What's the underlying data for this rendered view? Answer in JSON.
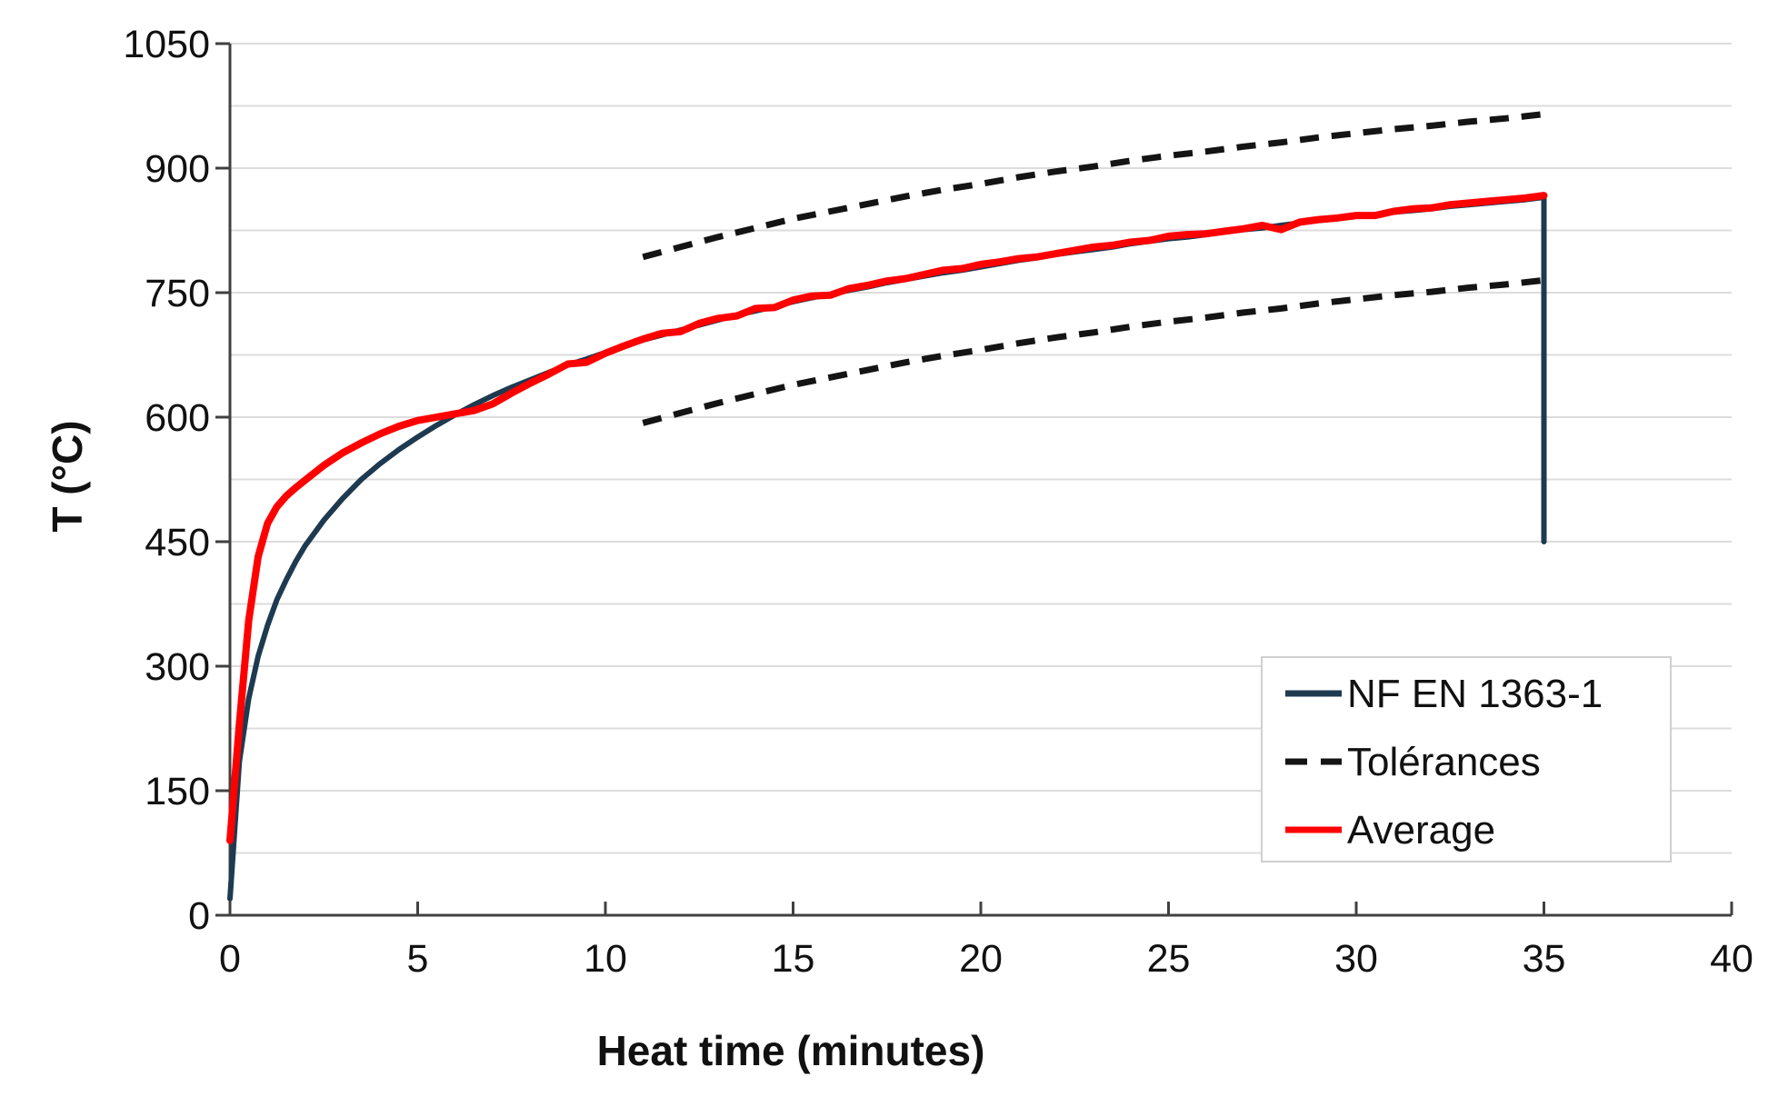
{
  "chart_data": {
    "type": "line",
    "title": "",
    "xlabel": "Heat time (minutes)",
    "ylabel": "T (°C)",
    "xlim": [
      0,
      40
    ],
    "ylim": [
      0,
      1050
    ],
    "x_ticks": [
      0,
      5,
      10,
      15,
      20,
      25,
      30,
      35,
      40
    ],
    "y_ticks": [
      0,
      150,
      300,
      450,
      600,
      750,
      900,
      1050
    ],
    "y_minor_grid_step": 75,
    "grid": "horizontal minor gridlines only",
    "legend_position": "inside-bottom-right",
    "colors": {
      "standard_curve": "#1e3a50",
      "tolerance": "#141414",
      "average": "#ff0000",
      "gridline": "#dcdcdc",
      "axis": "#404040",
      "legend_border": "#d0d0d0",
      "text": "#111111"
    },
    "legend": [
      {
        "label": "NF EN 1363-1",
        "color": "#1e3a50",
        "dash": false
      },
      {
        "label": "Tolérances",
        "color": "#141414",
        "dash": true
      },
      {
        "label": "Average",
        "color": "#ff0000",
        "dash": false
      }
    ],
    "series": [
      {
        "name": "NF EN 1363-1",
        "role": "standard-curve",
        "color": "#1e3a50",
        "style": "solid",
        "width": 6,
        "points": [
          [
            0,
            20
          ],
          [
            0.25,
            185
          ],
          [
            0.5,
            261
          ],
          [
            0.75,
            312
          ],
          [
            1,
            349
          ],
          [
            1.25,
            380
          ],
          [
            1.5,
            404
          ],
          [
            1.75,
            426
          ],
          [
            2,
            445
          ],
          [
            2.5,
            476
          ],
          [
            3,
            502
          ],
          [
            3.5,
            525
          ],
          [
            4,
            544
          ],
          [
            4.5,
            561
          ],
          [
            5,
            576
          ],
          [
            5.5,
            590
          ],
          [
            6,
            603
          ],
          [
            6.5,
            615
          ],
          [
            7,
            626
          ],
          [
            7.5,
            636
          ],
          [
            8,
            645
          ],
          [
            8.5,
            654
          ],
          [
            9,
            663
          ],
          [
            9.5,
            670
          ],
          [
            10,
            678
          ],
          [
            10.5,
            685
          ],
          [
            11,
            693
          ],
          [
            11.5,
            699
          ],
          [
            12,
            705
          ],
          [
            12.5,
            711
          ],
          [
            13,
            717
          ],
          [
            13.5,
            723
          ],
          [
            14,
            728
          ],
          [
            14.5,
            733
          ],
          [
            15,
            739
          ],
          [
            15.5,
            744
          ],
          [
            16,
            748
          ],
          [
            16.5,
            753
          ],
          [
            17,
            757
          ],
          [
            17.5,
            762
          ],
          [
            18,
            766
          ],
          [
            18.5,
            770
          ],
          [
            19,
            774
          ],
          [
            19.5,
            777
          ],
          [
            20,
            781
          ],
          [
            20.5,
            785
          ],
          [
            21,
            789
          ],
          [
            21.5,
            792
          ],
          [
            22,
            796
          ],
          [
            22.5,
            799
          ],
          [
            23,
            802
          ],
          [
            23.5,
            805
          ],
          [
            24,
            809
          ],
          [
            24.5,
            812
          ],
          [
            25,
            815
          ],
          [
            25.5,
            817
          ],
          [
            26,
            820
          ],
          [
            26.5,
            823
          ],
          [
            27,
            826
          ],
          [
            27.5,
            828
          ],
          [
            28,
            831
          ],
          [
            28.5,
            834
          ],
          [
            29,
            837
          ],
          [
            29.5,
            839
          ],
          [
            30,
            842
          ],
          [
            30.5,
            844
          ],
          [
            31,
            847
          ],
          [
            31.5,
            849
          ],
          [
            32,
            851
          ],
          [
            32.5,
            854
          ],
          [
            33,
            856
          ],
          [
            33.5,
            858
          ],
          [
            34,
            860
          ],
          [
            34.5,
            862
          ],
          [
            35,
            865
          ],
          [
            35,
            450
          ]
        ]
      },
      {
        "name": "Tolérances",
        "role": "tolerance-upper",
        "color": "#141414",
        "style": "dashed",
        "width": 7,
        "points": [
          [
            11,
            793
          ],
          [
            12,
            805
          ],
          [
            13,
            817
          ],
          [
            14,
            828
          ],
          [
            15,
            839
          ],
          [
            16,
            848
          ],
          [
            17,
            857
          ],
          [
            18,
            866
          ],
          [
            19,
            874
          ],
          [
            20,
            881
          ],
          [
            21,
            889
          ],
          [
            22,
            896
          ],
          [
            23,
            902
          ],
          [
            24,
            909
          ],
          [
            25,
            915
          ],
          [
            26,
            920
          ],
          [
            27,
            926
          ],
          [
            28,
            931
          ],
          [
            29,
            937
          ],
          [
            30,
            942
          ],
          [
            31,
            947
          ],
          [
            32,
            951
          ],
          [
            33,
            956
          ],
          [
            34,
            960
          ],
          [
            35,
            965
          ]
        ]
      },
      {
        "name": "Tolérances",
        "role": "tolerance-lower",
        "color": "#141414",
        "style": "dashed",
        "width": 7,
        "points": [
          [
            11,
            593
          ],
          [
            12,
            605
          ],
          [
            13,
            617
          ],
          [
            14,
            628
          ],
          [
            15,
            639
          ],
          [
            16,
            648
          ],
          [
            17,
            657
          ],
          [
            18,
            666
          ],
          [
            19,
            674
          ],
          [
            20,
            681
          ],
          [
            21,
            689
          ],
          [
            22,
            696
          ],
          [
            23,
            702
          ],
          [
            24,
            709
          ],
          [
            25,
            715
          ],
          [
            26,
            720
          ],
          [
            27,
            726
          ],
          [
            28,
            731
          ],
          [
            29,
            737
          ],
          [
            30,
            742
          ],
          [
            31,
            747
          ],
          [
            32,
            751
          ],
          [
            33,
            756
          ],
          [
            34,
            760
          ],
          [
            35,
            765
          ]
        ]
      },
      {
        "name": "Average",
        "role": "measured-average",
        "color": "#ff0000",
        "style": "solid",
        "width": 8,
        "points": [
          [
            0,
            90
          ],
          [
            0.25,
            230
          ],
          [
            0.5,
            355
          ],
          [
            0.75,
            432
          ],
          [
            1,
            472
          ],
          [
            1.25,
            492
          ],
          [
            1.5,
            505
          ],
          [
            1.75,
            515
          ],
          [
            2,
            524
          ],
          [
            2.5,
            542
          ],
          [
            3,
            557
          ],
          [
            3.5,
            569
          ],
          [
            4,
            580
          ],
          [
            4.5,
            589
          ],
          [
            5,
            596
          ],
          [
            5.5,
            600
          ],
          [
            6,
            604
          ],
          [
            6.5,
            608
          ],
          [
            7,
            616
          ],
          [
            7.5,
            629
          ],
          [
            8,
            641
          ],
          [
            8.5,
            652
          ],
          [
            9,
            664
          ],
          [
            9.5,
            666
          ],
          [
            10,
            677
          ],
          [
            10.5,
            686
          ],
          [
            11,
            694
          ],
          [
            11.5,
            701
          ],
          [
            12,
            703
          ],
          [
            12.5,
            713
          ],
          [
            13,
            719
          ],
          [
            13.5,
            722
          ],
          [
            14,
            731
          ],
          [
            14.5,
            732
          ],
          [
            15,
            741
          ],
          [
            15.5,
            746
          ],
          [
            16,
            747
          ],
          [
            16.5,
            755
          ],
          [
            17,
            759
          ],
          [
            17.5,
            764
          ],
          [
            18,
            767
          ],
          [
            18.5,
            772
          ],
          [
            19,
            777
          ],
          [
            19.5,
            779
          ],
          [
            20,
            784
          ],
          [
            20.5,
            787
          ],
          [
            21,
            791
          ],
          [
            21.5,
            793
          ],
          [
            22,
            797
          ],
          [
            22.5,
            801
          ],
          [
            23,
            805
          ],
          [
            23.5,
            807
          ],
          [
            24,
            811
          ],
          [
            24.5,
            813
          ],
          [
            25,
            818
          ],
          [
            25.5,
            820
          ],
          [
            26,
            821
          ],
          [
            26.5,
            824
          ],
          [
            27,
            827
          ],
          [
            27.5,
            831
          ],
          [
            28,
            826
          ],
          [
            28.5,
            835
          ],
          [
            29,
            838
          ],
          [
            29.5,
            840
          ],
          [
            30,
            843
          ],
          [
            30.5,
            843
          ],
          [
            31,
            848
          ],
          [
            31.5,
            851
          ],
          [
            32,
            852
          ],
          [
            32.5,
            856
          ],
          [
            33,
            858
          ],
          [
            33.5,
            860
          ],
          [
            34,
            862
          ],
          [
            34.5,
            864
          ],
          [
            35,
            867
          ]
        ]
      }
    ]
  }
}
